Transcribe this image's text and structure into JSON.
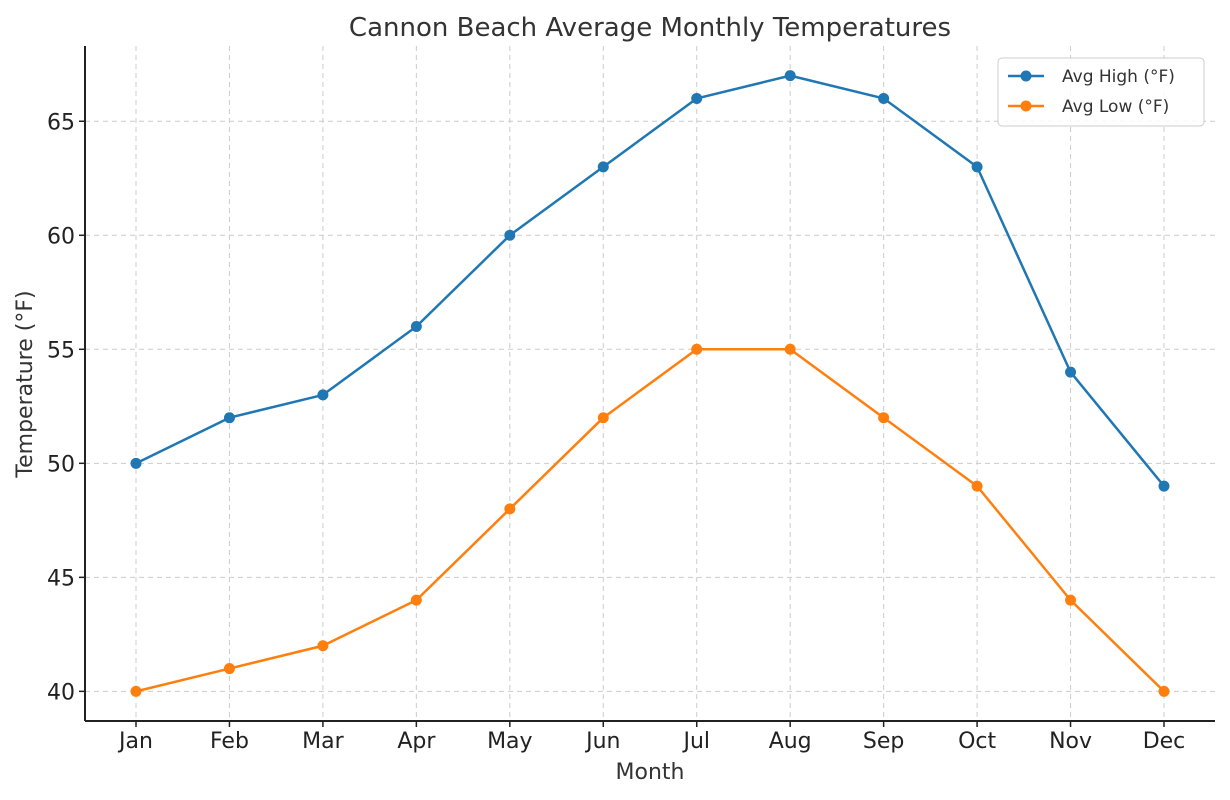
{
  "chart_data": {
    "type": "line",
    "title": "Cannon Beach Average Monthly Temperatures",
    "xlabel": "Month",
    "ylabel": "Temperature (°F)",
    "categories": [
      "Jan",
      "Feb",
      "Mar",
      "Apr",
      "May",
      "Jun",
      "Jul",
      "Aug",
      "Sep",
      "Oct",
      "Nov",
      "Dec"
    ],
    "ylim": [
      38.7,
      68.3
    ],
    "yticks": [
      40,
      45,
      50,
      55,
      60,
      65
    ],
    "grid": true,
    "legend_position": "top-right",
    "series": [
      {
        "name": "Avg High (°F)",
        "color": "#1f77b4",
        "values": [
          50,
          52,
          53,
          56,
          60,
          63,
          66,
          67,
          66,
          63,
          54,
          49
        ]
      },
      {
        "name": "Avg Low (°F)",
        "color": "#ff7f0e",
        "values": [
          40,
          41,
          42,
          44,
          48,
          52,
          55,
          55,
          52,
          49,
          44,
          40
        ]
      }
    ]
  }
}
